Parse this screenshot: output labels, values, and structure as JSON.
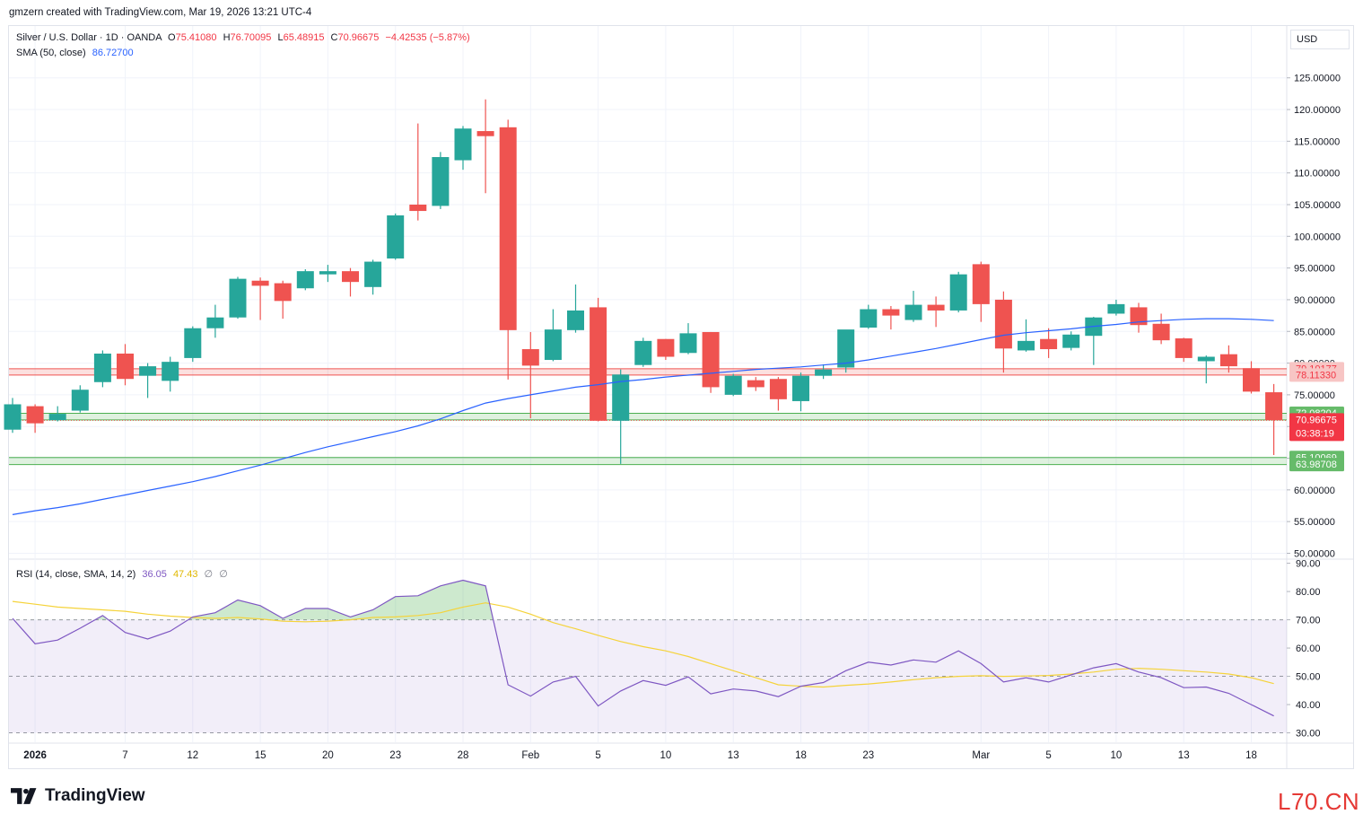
{
  "caption": "gmzern created with TradingView.com, Mar 19, 2026 13:21 UTC-4",
  "legend": {
    "symbol": "Silver / U.S. Dollar · 1D · OANDA",
    "o_label": "O",
    "o": "75.41080",
    "h_label": "H",
    "h": "76.70095",
    "l_label": "L",
    "l": "65.48915",
    "c_label": "C",
    "c": "70.96675",
    "change": "−4.42535 (−5.87%)",
    "sma_label": "SMA (50, close)",
    "sma_value": "86.72700",
    "rsi_label": "RSI (14, close, SMA, 14, 2)",
    "rsi_value": "36.05",
    "rsi_ma_value": "47.43",
    "rsi_extra1": "∅",
    "rsi_extra2": "∅"
  },
  "currency": "USD",
  "brand": "TradingView",
  "watermark": "L70.CN",
  "colors": {
    "up": "#26a69a",
    "down": "#ef5350",
    "sma": "#2962ff",
    "rsi": "#7e57c2",
    "rsi_ma": "#f5d33a",
    "green_zone": "#4caf50",
    "red_zone": "#ef5350"
  },
  "chart_data": {
    "type": "candlestick",
    "price_axis": {
      "ticks": [
        50,
        55,
        60,
        65,
        70,
        75,
        80,
        85,
        90,
        95,
        100,
        105,
        110,
        115,
        120,
        125
      ],
      "tick_labels": [
        "50.00000",
        "55.00000",
        "60.00000",
        "65.00000",
        "70.00000",
        "75.00000",
        "80.00000",
        "85.00000",
        "90.00000",
        "95.00000",
        "100.00000",
        "105.00000",
        "110.00000",
        "115.00000",
        "120.00000",
        "125.00000"
      ],
      "range": [
        49.5,
        128.5
      ]
    },
    "rsi_axis": {
      "ticks": [
        30,
        40,
        50,
        60,
        70,
        80,
        90
      ],
      "tick_labels": [
        "30.00",
        "40.00",
        "50.00",
        "60.00",
        "70.00",
        "80.00",
        "90.00"
      ],
      "range": [
        27,
        90.5
      ],
      "band": [
        30,
        70
      ],
      "midline": 50
    },
    "x_axis": {
      "labels": [
        {
          "text": "2026",
          "bold": true,
          "index": 1
        },
        {
          "text": "7",
          "index": 5
        },
        {
          "text": "12",
          "index": 8
        },
        {
          "text": "15",
          "index": 11
        },
        {
          "text": "20",
          "index": 14
        },
        {
          "text": "23",
          "index": 17
        },
        {
          "text": "28",
          "index": 20
        },
        {
          "text": "Feb",
          "index": 23
        },
        {
          "text": "5",
          "index": 26
        },
        {
          "text": "10",
          "index": 29
        },
        {
          "text": "13",
          "index": 32
        },
        {
          "text": "18",
          "index": 35
        },
        {
          "text": "23",
          "index": 38
        },
        {
          "text": "Mar",
          "index": 43
        },
        {
          "text": "5",
          "index": 46
        },
        {
          "text": "10",
          "index": 49
        },
        {
          "text": "13",
          "index": 52
        },
        {
          "text": "18",
          "index": 55
        }
      ]
    },
    "candles": [
      {
        "o": 69.5,
        "h": 74.5,
        "l": 69.0,
        "c": 73.5
      },
      {
        "o": 73.2,
        "h": 73.5,
        "l": 69.0,
        "c": 70.5
      },
      {
        "o": 71.0,
        "h": 73.2,
        "l": 70.8,
        "c": 72.0
      },
      {
        "o": 72.5,
        "h": 76.5,
        "l": 72.2,
        "c": 75.8
      },
      {
        "o": 77.0,
        "h": 82.0,
        "l": 76.2,
        "c": 81.5
      },
      {
        "o": 81.5,
        "h": 83.0,
        "l": 76.5,
        "c": 77.5
      },
      {
        "o": 78.0,
        "h": 80.0,
        "l": 74.5,
        "c": 79.5
      },
      {
        "o": 77.2,
        "h": 81.0,
        "l": 75.5,
        "c": 80.2
      },
      {
        "o": 80.8,
        "h": 85.8,
        "l": 80.2,
        "c": 85.5
      },
      {
        "o": 85.5,
        "h": 89.2,
        "l": 84.0,
        "c": 87.2
      },
      {
        "o": 87.2,
        "h": 93.6,
        "l": 87.0,
        "c": 93.3
      },
      {
        "o": 93.0,
        "h": 93.5,
        "l": 86.8,
        "c": 92.2
      },
      {
        "o": 92.6,
        "h": 93.0,
        "l": 87.0,
        "c": 89.8
      },
      {
        "o": 91.8,
        "h": 94.8,
        "l": 91.5,
        "c": 94.5
      },
      {
        "o": 94.0,
        "h": 95.5,
        "l": 92.8,
        "c": 94.5
      },
      {
        "o": 94.5,
        "h": 95.0,
        "l": 90.5,
        "c": 92.8
      },
      {
        "o": 92.0,
        "h": 96.3,
        "l": 90.8,
        "c": 96.0
      },
      {
        "o": 96.5,
        "h": 103.6,
        "l": 96.3,
        "c": 103.3
      },
      {
        "o": 105.0,
        "h": 117.8,
        "l": 102.5,
        "c": 104.0
      },
      {
        "o": 104.8,
        "h": 113.3,
        "l": 104.3,
        "c": 112.5
      },
      {
        "o": 112.0,
        "h": 117.4,
        "l": 110.5,
        "c": 117.0
      },
      {
        "o": 116.6,
        "h": 121.6,
        "l": 106.8,
        "c": 115.8
      },
      {
        "o": 117.2,
        "h": 118.4,
        "l": 77.4,
        "c": 85.2
      },
      {
        "o": 82.2,
        "h": 84.9,
        "l": 71.3,
        "c": 79.6
      },
      {
        "o": 80.5,
        "h": 88.5,
        "l": 80.3,
        "c": 85.3
      },
      {
        "o": 85.2,
        "h": 92.4,
        "l": 84.8,
        "c": 88.3
      },
      {
        "o": 88.8,
        "h": 90.3,
        "l": 70.8,
        "c": 70.9
      },
      {
        "o": 70.9,
        "h": 79.0,
        "l": 64.1,
        "c": 78.2
      },
      {
        "o": 79.7,
        "h": 84.0,
        "l": 79.4,
        "c": 83.5
      },
      {
        "o": 83.8,
        "h": 83.8,
        "l": 80.5,
        "c": 81.0
      },
      {
        "o": 81.6,
        "h": 86.3,
        "l": 81.4,
        "c": 84.7
      },
      {
        "o": 84.9,
        "h": 84.9,
        "l": 75.3,
        "c": 76.2
      },
      {
        "o": 75.0,
        "h": 78.3,
        "l": 74.8,
        "c": 78.0
      },
      {
        "o": 77.3,
        "h": 77.8,
        "l": 75.6,
        "c": 76.2
      },
      {
        "o": 77.5,
        "h": 77.8,
        "l": 72.5,
        "c": 74.3
      },
      {
        "o": 74.0,
        "h": 78.5,
        "l": 72.4,
        "c": 78.0
      },
      {
        "o": 78.0,
        "h": 79.8,
        "l": 77.5,
        "c": 79.0
      },
      {
        "o": 79.3,
        "h": 85.0,
        "l": 78.5,
        "c": 85.3
      },
      {
        "o": 85.6,
        "h": 89.2,
        "l": 85.4,
        "c": 88.5
      },
      {
        "o": 88.5,
        "h": 89.0,
        "l": 85.3,
        "c": 87.5
      },
      {
        "o": 86.8,
        "h": 91.4,
        "l": 86.5,
        "c": 89.2
      },
      {
        "o": 89.2,
        "h": 90.5,
        "l": 85.7,
        "c": 88.3
      },
      {
        "o": 88.3,
        "h": 94.4,
        "l": 88.0,
        "c": 94.0
      },
      {
        "o": 95.6,
        "h": 96.0,
        "l": 86.5,
        "c": 89.3
      },
      {
        "o": 90.0,
        "h": 91.3,
        "l": 78.5,
        "c": 82.3
      },
      {
        "o": 82.0,
        "h": 86.9,
        "l": 81.8,
        "c": 83.5
      },
      {
        "o": 83.8,
        "h": 85.5,
        "l": 80.8,
        "c": 82.2
      },
      {
        "o": 82.4,
        "h": 85.0,
        "l": 82.0,
        "c": 84.5
      },
      {
        "o": 84.3,
        "h": 87.3,
        "l": 79.7,
        "c": 87.2
      },
      {
        "o": 87.8,
        "h": 90.0,
        "l": 87.5,
        "c": 89.3
      },
      {
        "o": 88.8,
        "h": 89.5,
        "l": 84.8,
        "c": 86.0
      },
      {
        "o": 86.2,
        "h": 87.8,
        "l": 83.0,
        "c": 83.6
      },
      {
        "o": 83.9,
        "h": 84.0,
        "l": 80.2,
        "c": 80.8
      },
      {
        "o": 80.3,
        "h": 81.2,
        "l": 76.8,
        "c": 81.0
      },
      {
        "o": 81.4,
        "h": 82.8,
        "l": 78.5,
        "c": 79.5
      },
      {
        "o": 79.2,
        "h": 80.3,
        "l": 75.2,
        "c": 75.5
      },
      {
        "o": 75.4,
        "h": 76.7,
        "l": 65.5,
        "c": 71.0
      }
    ],
    "sma50": [
      56.1,
      56.7,
      57.2,
      57.8,
      58.5,
      59.2,
      59.9,
      60.6,
      61.3,
      62.1,
      63.0,
      63.9,
      64.9,
      65.9,
      66.8,
      67.6,
      68.4,
      69.2,
      70.1,
      71.2,
      72.5,
      73.7,
      74.4,
      75.0,
      75.6,
      76.2,
      76.6,
      77.1,
      77.4,
      77.8,
      78.1,
      78.4,
      78.7,
      79.0,
      79.2,
      79.4,
      79.7,
      80.0,
      80.5,
      81.1,
      81.7,
      82.3,
      83.0,
      83.7,
      84.4,
      84.8,
      85.1,
      85.4,
      85.8,
      86.1,
      86.5,
      86.7,
      86.9,
      87.0,
      87.0,
      86.9,
      86.7
    ],
    "rsi": [
      70.5,
      61.5,
      62.8,
      67.0,
      71.5,
      65.5,
      63.2,
      66.0,
      71.0,
      72.5,
      77.0,
      75.0,
      70.5,
      74.0,
      74.0,
      71.0,
      73.5,
      78.2,
      78.5,
      82.0,
      84.0,
      82.0,
      47.0,
      43.0,
      48.0,
      50.0,
      39.5,
      44.8,
      48.5,
      46.8,
      49.8,
      43.8,
      45.5,
      44.8,
      42.8,
      46.5,
      47.8,
      52.0,
      55.0,
      54.0,
      55.8,
      55.0,
      59.0,
      54.5,
      48.0,
      49.5,
      48.0,
      50.5,
      53.0,
      54.5,
      51.5,
      49.5,
      46.0,
      46.2,
      44.0,
      40.0,
      36.0
    ],
    "rsi_ma": [
      76.5,
      75.5,
      74.5,
      74.0,
      73.5,
      73.0,
      72.0,
      71.3,
      70.8,
      70.5,
      70.8,
      70.3,
      69.5,
      69.3,
      69.5,
      70.0,
      70.8,
      71.0,
      71.5,
      72.5,
      74.5,
      76.0,
      74.5,
      72.0,
      69.0,
      66.8,
      64.5,
      62.3,
      60.5,
      59.0,
      57.0,
      54.5,
      52.0,
      49.5,
      47.0,
      46.5,
      46.2,
      46.8,
      47.3,
      48.0,
      48.8,
      49.5,
      50.0,
      50.2,
      50.0,
      50.1,
      50.3,
      50.8,
      51.5,
      52.5,
      52.8,
      52.5,
      52.0,
      51.5,
      50.8,
      49.5,
      47.4
    ],
    "zones": [
      {
        "low": 78.1133,
        "high": 79.10177,
        "kind": "resistance"
      },
      {
        "low": 71.04087,
        "high": 72.08204,
        "kind": "support"
      },
      {
        "low": 63.98708,
        "high": 65.10069,
        "kind": "support"
      }
    ],
    "price_labels": [
      {
        "text": "79.10177",
        "value": 79.10177,
        "kind": "red-zone"
      },
      {
        "text": "78.11330",
        "value": 78.1133,
        "kind": "red-zone"
      },
      {
        "text": "72.08204",
        "value": 72.08204,
        "kind": "green"
      },
      {
        "text": "71.04087",
        "value": 71.04087,
        "kind": "green"
      },
      {
        "text": "70.96675",
        "value": 70.96675,
        "kind": "last",
        "sub": "03:38:19"
      },
      {
        "text": "65.10069",
        "value": 65.10069,
        "kind": "green"
      },
      {
        "text": "63.98708",
        "value": 63.98708,
        "kind": "green"
      }
    ]
  }
}
